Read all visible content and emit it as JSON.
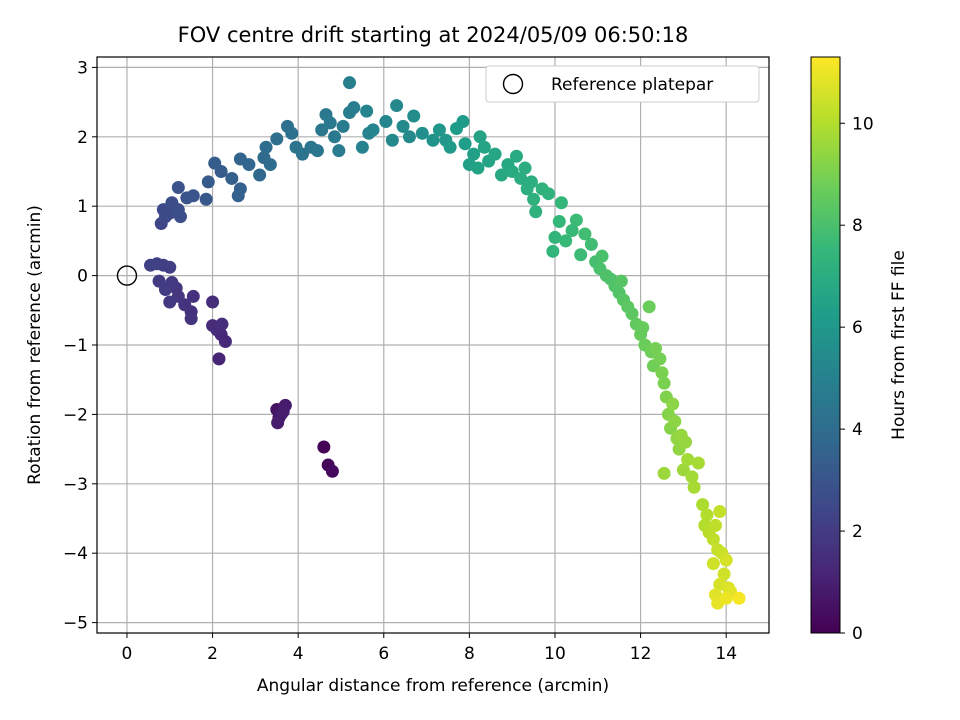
{
  "chart_data": {
    "type": "scatter",
    "title": "FOV centre drift starting at 2024/05/09 06:50:18",
    "xlabel": "Angular distance from reference (arcmin)",
    "ylabel": "Rotation from reference (arcmin)",
    "xlim": [
      -0.7,
      15.0
    ],
    "ylim": [
      -5.15,
      3.15
    ],
    "xticks": [
      0,
      2,
      4,
      6,
      8,
      10,
      12,
      14
    ],
    "yticks": [
      -5,
      -4,
      -3,
      -2,
      -1,
      0,
      1,
      2,
      3
    ],
    "grid": true,
    "legend": {
      "placement": "top-right",
      "entries": [
        {
          "label": "Reference platepar",
          "marker": "open-circle"
        }
      ]
    },
    "reference_point": {
      "x": 0,
      "y": 0
    },
    "colorbar": {
      "label": "Hours from first FF file",
      "colormap": "viridis",
      "range": [
        0,
        11.3
      ],
      "ticks": [
        0,
        2,
        4,
        6,
        8,
        10
      ]
    },
    "colormap_stops": [
      "#440154",
      "#482878",
      "#3e4989",
      "#31688e",
      "#26828e",
      "#1f9e89",
      "#35b779",
      "#6ece58",
      "#b5de2b",
      "#fde725"
    ],
    "series": [
      {
        "color_by": "hours",
        "points": [
          {
            "x": 4.6,
            "y": -2.47,
            "c": 0.1
          },
          {
            "x": 4.7,
            "y": -2.73,
            "c": 0.2
          },
          {
            "x": 4.8,
            "y": -2.82,
            "c": 0.3
          },
          {
            "x": 3.5,
            "y": -1.93,
            "c": 0.6
          },
          {
            "x": 3.55,
            "y": -2.05,
            "c": 0.7
          },
          {
            "x": 3.7,
            "y": -1.87,
            "c": 0.8
          },
          {
            "x": 3.6,
            "y": -2.0,
            "c": 0.8
          },
          {
            "x": 3.52,
            "y": -2.12,
            "c": 0.9
          },
          {
            "x": 3.65,
            "y": -1.96,
            "c": 0.9
          },
          {
            "x": 2.15,
            "y": -1.2,
            "c": 1.2
          },
          {
            "x": 2.2,
            "y": -0.85,
            "c": 1.3
          },
          {
            "x": 2.3,
            "y": -0.95,
            "c": 1.3
          },
          {
            "x": 2.0,
            "y": -0.72,
            "c": 1.4
          },
          {
            "x": 2.1,
            "y": -0.78,
            "c": 1.4
          },
          {
            "x": 2.22,
            "y": -0.7,
            "c": 1.5
          },
          {
            "x": 2.0,
            "y": -0.38,
            "c": 1.5
          },
          {
            "x": 1.55,
            "y": -0.3,
            "c": 1.6
          },
          {
            "x": 1.5,
            "y": -0.52,
            "c": 1.6
          },
          {
            "x": 1.5,
            "y": -0.62,
            "c": 1.7
          },
          {
            "x": 1.35,
            "y": -0.42,
            "c": 1.7
          },
          {
            "x": 1.2,
            "y": -0.3,
            "c": 1.8
          },
          {
            "x": 1.15,
            "y": -0.18,
            "c": 1.8
          },
          {
            "x": 1.05,
            "y": -0.1,
            "c": 1.9
          },
          {
            "x": 1.0,
            "y": -0.38,
            "c": 1.9
          },
          {
            "x": 0.9,
            "y": -0.2,
            "c": 2.0
          },
          {
            "x": 0.75,
            "y": -0.08,
            "c": 2.0
          },
          {
            "x": 1.0,
            "y": 0.12,
            "c": 2.1
          },
          {
            "x": 0.85,
            "y": 0.15,
            "c": 2.1
          },
          {
            "x": 0.7,
            "y": 0.17,
            "c": 2.2
          },
          {
            "x": 0.55,
            "y": 0.15,
            "c": 2.2
          },
          {
            "x": 0.8,
            "y": 0.75,
            "c": 2.4
          },
          {
            "x": 0.9,
            "y": 0.85,
            "c": 2.5
          },
          {
            "x": 0.85,
            "y": 0.95,
            "c": 2.5
          },
          {
            "x": 1.0,
            "y": 0.9,
            "c": 2.6
          },
          {
            "x": 1.05,
            "y": 1.05,
            "c": 2.7
          },
          {
            "x": 1.2,
            "y": 0.95,
            "c": 2.7
          },
          {
            "x": 1.25,
            "y": 0.85,
            "c": 2.8
          },
          {
            "x": 1.2,
            "y": 1.27,
            "c": 2.9
          },
          {
            "x": 1.4,
            "y": 1.12,
            "c": 2.9
          },
          {
            "x": 1.55,
            "y": 1.15,
            "c": 3.0
          },
          {
            "x": 1.85,
            "y": 1.1,
            "c": 3.1
          },
          {
            "x": 1.9,
            "y": 1.35,
            "c": 3.2
          },
          {
            "x": 2.05,
            "y": 1.62,
            "c": 3.3
          },
          {
            "x": 2.2,
            "y": 1.5,
            "c": 3.3
          },
          {
            "x": 2.45,
            "y": 1.4,
            "c": 3.4
          },
          {
            "x": 2.6,
            "y": 1.15,
            "c": 3.5
          },
          {
            "x": 2.65,
            "y": 1.25,
            "c": 3.5
          },
          {
            "x": 2.65,
            "y": 1.68,
            "c": 3.6
          },
          {
            "x": 2.85,
            "y": 1.6,
            "c": 3.7
          },
          {
            "x": 3.1,
            "y": 1.45,
            "c": 3.8
          },
          {
            "x": 3.2,
            "y": 1.7,
            "c": 3.9
          },
          {
            "x": 3.35,
            "y": 1.6,
            "c": 4.0
          },
          {
            "x": 3.25,
            "y": 1.85,
            "c": 4.0
          },
          {
            "x": 3.5,
            "y": 1.97,
            "c": 4.1
          },
          {
            "x": 3.75,
            "y": 2.15,
            "c": 4.2
          },
          {
            "x": 3.85,
            "y": 2.05,
            "c": 4.2
          },
          {
            "x": 3.95,
            "y": 1.85,
            "c": 4.3
          },
          {
            "x": 4.1,
            "y": 1.75,
            "c": 4.3
          },
          {
            "x": 4.3,
            "y": 1.85,
            "c": 4.4
          },
          {
            "x": 4.45,
            "y": 1.8,
            "c": 4.4
          },
          {
            "x": 4.55,
            "y": 2.1,
            "c": 4.5
          },
          {
            "x": 4.65,
            "y": 2.32,
            "c": 4.5
          },
          {
            "x": 4.75,
            "y": 2.2,
            "c": 4.6
          },
          {
            "x": 4.85,
            "y": 2.0,
            "c": 4.6
          },
          {
            "x": 4.95,
            "y": 1.8,
            "c": 4.7
          },
          {
            "x": 5.05,
            "y": 2.15,
            "c": 4.7
          },
          {
            "x": 5.2,
            "y": 2.35,
            "c": 4.8
          },
          {
            "x": 5.3,
            "y": 2.42,
            "c": 4.8
          },
          {
            "x": 5.2,
            "y": 2.78,
            "c": 4.9
          },
          {
            "x": 5.5,
            "y": 1.85,
            "c": 5.0
          },
          {
            "x": 5.65,
            "y": 2.05,
            "c": 5.0
          },
          {
            "x": 5.75,
            "y": 2.1,
            "c": 5.1
          },
          {
            "x": 5.6,
            "y": 2.37,
            "c": 5.1
          },
          {
            "x": 6.05,
            "y": 2.22,
            "c": 5.2
          },
          {
            "x": 6.2,
            "y": 1.95,
            "c": 5.3
          },
          {
            "x": 6.3,
            "y": 2.45,
            "c": 5.3
          },
          {
            "x": 6.45,
            "y": 2.15,
            "c": 5.4
          },
          {
            "x": 6.6,
            "y": 2.0,
            "c": 5.4
          },
          {
            "x": 6.7,
            "y": 2.3,
            "c": 5.5
          },
          {
            "x": 6.9,
            "y": 2.05,
            "c": 5.6
          },
          {
            "x": 7.15,
            "y": 1.95,
            "c": 5.8
          },
          {
            "x": 7.3,
            "y": 2.1,
            "c": 5.9
          },
          {
            "x": 7.45,
            "y": 1.95,
            "c": 6.0
          },
          {
            "x": 7.55,
            "y": 1.85,
            "c": 6.1
          },
          {
            "x": 7.7,
            "y": 2.12,
            "c": 6.2
          },
          {
            "x": 7.85,
            "y": 2.22,
            "c": 6.2
          },
          {
            "x": 7.9,
            "y": 1.9,
            "c": 6.3
          },
          {
            "x": 8.0,
            "y": 1.6,
            "c": 6.4
          },
          {
            "x": 8.1,
            "y": 1.75,
            "c": 6.4
          },
          {
            "x": 8.2,
            "y": 1.55,
            "c": 6.5
          },
          {
            "x": 8.25,
            "y": 2.0,
            "c": 6.5
          },
          {
            "x": 8.35,
            "y": 1.85,
            "c": 6.6
          },
          {
            "x": 8.45,
            "y": 1.65,
            "c": 6.6
          },
          {
            "x": 8.6,
            "y": 1.75,
            "c": 6.7
          },
          {
            "x": 8.75,
            "y": 1.45,
            "c": 6.8
          },
          {
            "x": 8.9,
            "y": 1.6,
            "c": 6.8
          },
          {
            "x": 9.0,
            "y": 1.5,
            "c": 6.9
          },
          {
            "x": 9.1,
            "y": 1.72,
            "c": 6.9
          },
          {
            "x": 9.2,
            "y": 1.4,
            "c": 7.0
          },
          {
            "x": 9.3,
            "y": 1.55,
            "c": 7.0
          },
          {
            "x": 9.35,
            "y": 1.25,
            "c": 7.1
          },
          {
            "x": 9.45,
            "y": 1.35,
            "c": 7.1
          },
          {
            "x": 9.5,
            "y": 1.1,
            "c": 7.2
          },
          {
            "x": 9.55,
            "y": 0.92,
            "c": 7.2
          },
          {
            "x": 9.7,
            "y": 1.25,
            "c": 7.3
          },
          {
            "x": 9.85,
            "y": 1.18,
            "c": 7.3
          },
          {
            "x": 9.95,
            "y": 0.35,
            "c": 7.4
          },
          {
            "x": 10.0,
            "y": 0.55,
            "c": 7.4
          },
          {
            "x": 10.1,
            "y": 0.78,
            "c": 7.5
          },
          {
            "x": 10.15,
            "y": 1.05,
            "c": 7.5
          },
          {
            "x": 10.25,
            "y": 0.5,
            "c": 7.6
          },
          {
            "x": 10.4,
            "y": 0.65,
            "c": 7.6
          },
          {
            "x": 10.5,
            "y": 0.8,
            "c": 7.7
          },
          {
            "x": 10.6,
            "y": 0.3,
            "c": 7.7
          },
          {
            "x": 10.7,
            "y": 0.6,
            "c": 7.8
          },
          {
            "x": 10.85,
            "y": 0.45,
            "c": 7.8
          },
          {
            "x": 10.95,
            "y": 0.2,
            "c": 7.9
          },
          {
            "x": 11.05,
            "y": 0.1,
            "c": 8.0
          },
          {
            "x": 11.1,
            "y": 0.28,
            "c": 8.0
          },
          {
            "x": 11.2,
            "y": 0.0,
            "c": 8.1
          },
          {
            "x": 11.3,
            "y": -0.05,
            "c": 8.1
          },
          {
            "x": 11.4,
            "y": -0.15,
            "c": 8.2
          },
          {
            "x": 11.5,
            "y": -0.25,
            "c": 8.2
          },
          {
            "x": 11.55,
            "y": -0.08,
            "c": 8.3
          },
          {
            "x": 11.6,
            "y": -0.35,
            "c": 8.3
          },
          {
            "x": 11.7,
            "y": -0.45,
            "c": 8.4
          },
          {
            "x": 11.8,
            "y": -0.55,
            "c": 8.4
          },
          {
            "x": 11.9,
            "y": -0.7,
            "c": 8.5
          },
          {
            "x": 12.0,
            "y": -0.85,
            "c": 8.6
          },
          {
            "x": 12.05,
            "y": -0.75,
            "c": 8.6
          },
          {
            "x": 12.1,
            "y": -1.0,
            "c": 8.7
          },
          {
            "x": 12.2,
            "y": -0.45,
            "c": 8.7
          },
          {
            "x": 12.25,
            "y": -1.1,
            "c": 8.8
          },
          {
            "x": 12.3,
            "y": -1.3,
            "c": 8.8
          },
          {
            "x": 12.35,
            "y": -1.05,
            "c": 8.9
          },
          {
            "x": 12.45,
            "y": -1.2,
            "c": 8.9
          },
          {
            "x": 12.5,
            "y": -1.4,
            "c": 9.0
          },
          {
            "x": 12.55,
            "y": -1.55,
            "c": 9.0
          },
          {
            "x": 12.6,
            "y": -1.75,
            "c": 9.1
          },
          {
            "x": 12.65,
            "y": -2.0,
            "c": 9.2
          },
          {
            "x": 12.7,
            "y": -2.2,
            "c": 9.2
          },
          {
            "x": 12.75,
            "y": -1.85,
            "c": 9.3
          },
          {
            "x": 12.8,
            "y": -2.1,
            "c": 9.3
          },
          {
            "x": 12.85,
            "y": -2.35,
            "c": 9.4
          },
          {
            "x": 12.9,
            "y": -2.5,
            "c": 9.4
          },
          {
            "x": 12.95,
            "y": -2.3,
            "c": 9.5
          },
          {
            "x": 13.05,
            "y": -2.4,
            "c": 9.5
          },
          {
            "x": 12.55,
            "y": -2.85,
            "c": 9.6
          },
          {
            "x": 13.0,
            "y": -2.8,
            "c": 9.6
          },
          {
            "x": 13.1,
            "y": -2.65,
            "c": 9.7
          },
          {
            "x": 13.2,
            "y": -2.9,
            "c": 9.7
          },
          {
            "x": 13.25,
            "y": -3.05,
            "c": 9.8
          },
          {
            "x": 13.35,
            "y": -2.7,
            "c": 9.8
          },
          {
            "x": 13.45,
            "y": -3.3,
            "c": 9.9
          },
          {
            "x": 13.5,
            "y": -3.6,
            "c": 10.0
          },
          {
            "x": 13.55,
            "y": -3.45,
            "c": 10.0
          },
          {
            "x": 13.6,
            "y": -3.7,
            "c": 10.1
          },
          {
            "x": 13.7,
            "y": -3.8,
            "c": 10.2
          },
          {
            "x": 13.75,
            "y": -3.6,
            "c": 10.2
          },
          {
            "x": 13.8,
            "y": -3.95,
            "c": 10.3
          },
          {
            "x": 13.85,
            "y": -3.4,
            "c": 10.3
          },
          {
            "x": 13.9,
            "y": -4.0,
            "c": 10.4
          },
          {
            "x": 13.7,
            "y": -4.15,
            "c": 10.5
          },
          {
            "x": 13.95,
            "y": -4.3,
            "c": 10.5
          },
          {
            "x": 14.0,
            "y": -4.1,
            "c": 10.6
          },
          {
            "x": 13.85,
            "y": -4.45,
            "c": 10.6
          },
          {
            "x": 14.05,
            "y": -4.5,
            "c": 10.7
          },
          {
            "x": 13.75,
            "y": -4.6,
            "c": 10.8
          },
          {
            "x": 14.1,
            "y": -4.55,
            "c": 10.8
          },
          {
            "x": 13.8,
            "y": -4.72,
            "c": 10.9
          },
          {
            "x": 14.0,
            "y": -4.65,
            "c": 11.0
          },
          {
            "x": 14.3,
            "y": -4.65,
            "c": 11.2
          }
        ]
      }
    ]
  }
}
